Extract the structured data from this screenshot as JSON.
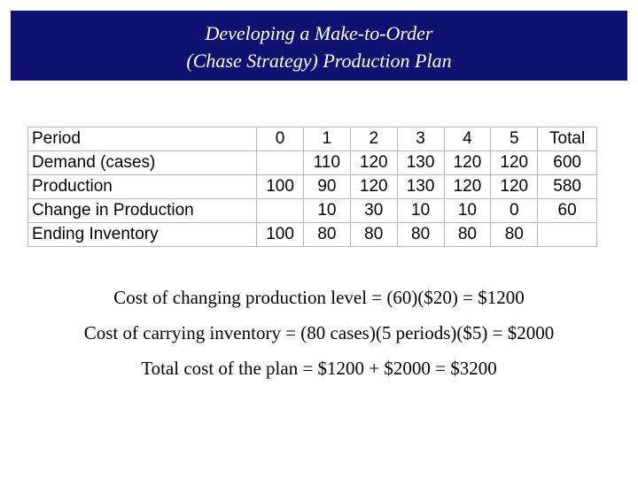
{
  "title": {
    "line1": "Developing a Make-to-Order",
    "line2": "(Chase Strategy) Production Plan"
  },
  "table": {
    "header": [
      "Period",
      "0",
      "1",
      "2",
      "3",
      "4",
      "5",
      "Total"
    ],
    "rows": [
      [
        "Demand (cases)",
        "",
        "110",
        "120",
        "130",
        "120",
        "120",
        "600"
      ],
      [
        "Production",
        "100",
        "90",
        "120",
        "130",
        "120",
        "120",
        "580"
      ],
      [
        "Change in Production",
        "",
        "10",
        "30",
        "10",
        "10",
        "0",
        "60"
      ],
      [
        "Ending Inventory",
        "100",
        "80",
        "80",
        "80",
        "80",
        "80",
        ""
      ]
    ]
  },
  "costs": {
    "changing": "Cost of changing production level = (60)($20) = $1200",
    "carrying": "Cost of carrying inventory = (80 cases)(5 periods)($5) = $2000",
    "total": "Total cost of the plan = $1200 + $2000 = $3200"
  },
  "colors": {
    "banner_background": "#0f1270",
    "banner_text": "#ffffff",
    "table_border": "#b8b8b8"
  }
}
